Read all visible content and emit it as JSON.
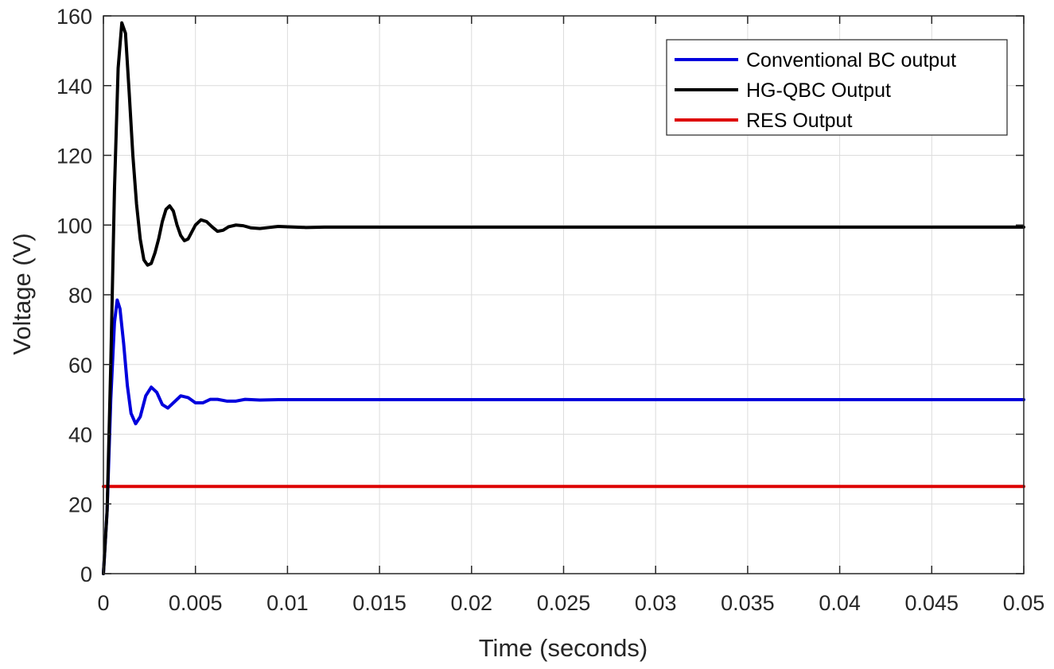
{
  "chart_data": {
    "type": "line",
    "title": "",
    "xlabel": "Time (seconds)",
    "ylabel": "Voltage (V)",
    "xlim": [
      0,
      0.05
    ],
    "ylim": [
      0,
      160
    ],
    "grid": true,
    "legend_position": "top-right",
    "x_ticks": [
      "0",
      "0.005",
      "0.01",
      "0.015",
      "0.02",
      "0.025",
      "0.03",
      "0.035",
      "0.04",
      "0.045",
      "0.05"
    ],
    "y_ticks": [
      "0",
      "20",
      "40",
      "60",
      "80",
      "100",
      "120",
      "140",
      "160"
    ],
    "series": [
      {
        "name": "Conventional BC output",
        "color": "#0000dd",
        "x": [
          0,
          0.0002,
          0.0004,
          0.0006,
          0.00075,
          0.0009,
          0.0011,
          0.0013,
          0.0015,
          0.00175,
          0.002,
          0.0023,
          0.0026,
          0.0029,
          0.0032,
          0.0035,
          0.0038,
          0.0042,
          0.0046,
          0.005,
          0.0054,
          0.0058,
          0.0062,
          0.0067,
          0.0072,
          0.0077,
          0.0085,
          0.0095,
          0.011,
          0.015,
          0.02,
          0.03,
          0.04,
          0.05
        ],
        "y": [
          0,
          18,
          50,
          72,
          78.5,
          76,
          66,
          54,
          46,
          43,
          45,
          51,
          53.5,
          52,
          48.5,
          47.5,
          49,
          51,
          50.5,
          49,
          49,
          50,
          50,
          49.5,
          49.5,
          50,
          49.8,
          49.9,
          49.9,
          49.9,
          49.9,
          49.9,
          49.9,
          49.9
        ]
      },
      {
        "name": "HG-QBC Output",
        "color": "#000000",
        "x": [
          0,
          0.0002,
          0.0004,
          0.0006,
          0.0008,
          0.001,
          0.0012,
          0.0014,
          0.0016,
          0.0018,
          0.002,
          0.0022,
          0.0024,
          0.0026,
          0.0028,
          0.003,
          0.0032,
          0.0034,
          0.0036,
          0.0038,
          0.004,
          0.0042,
          0.0044,
          0.0046,
          0.0048,
          0.005,
          0.0053,
          0.0056,
          0.0059,
          0.0062,
          0.0065,
          0.0068,
          0.0072,
          0.0076,
          0.008,
          0.0085,
          0.009,
          0.0095,
          0.01,
          0.011,
          0.012,
          0.015,
          0.02,
          0.03,
          0.04,
          0.05
        ],
        "y": [
          0,
          18,
          60,
          110,
          145,
          158,
          155,
          138,
          120,
          106,
          96,
          90,
          88.5,
          89,
          92,
          96,
          101,
          104.5,
          105.5,
          104,
          100,
          97,
          95.5,
          96,
          98,
          100,
          101.5,
          101,
          99.5,
          98.2,
          98.5,
          99.5,
          100,
          99.8,
          99.2,
          99,
          99.3,
          99.6,
          99.5,
          99.3,
          99.4,
          99.4,
          99.4,
          99.4,
          99.4,
          99.4
        ]
      },
      {
        "name": "RES Output",
        "color": "#dd0000",
        "x": [
          0,
          0.05
        ],
        "y": [
          25,
          25
        ]
      }
    ]
  }
}
